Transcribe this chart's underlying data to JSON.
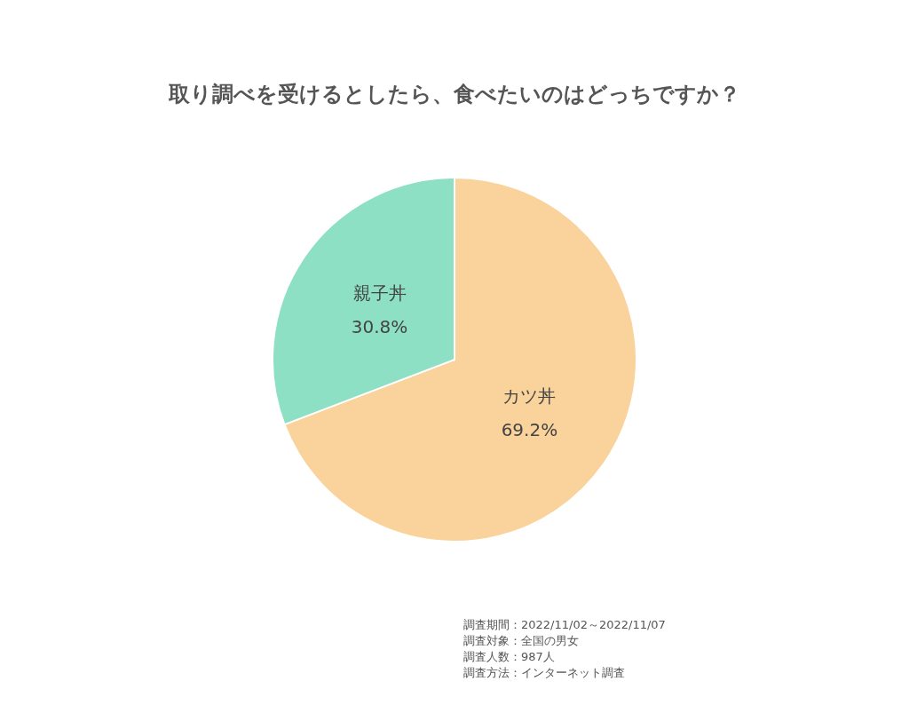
{
  "chart_data": {
    "type": "pie",
    "title": "取り調べを受けるとしたら、食べたいのはどっちですか？",
    "categories": [
      "カツ丼",
      "親子丼"
    ],
    "values": [
      69.2,
      30.8
    ],
    "value_labels": [
      "69.2%",
      "30.8%"
    ],
    "colors": [
      "#f9d39b",
      "#8de0c4"
    ],
    "legend": false,
    "annotations": [
      "調査期間：2022/11/02～2022/11/07",
      "調査対象：全国の男女",
      "調査人数：987人",
      "調査方法：インターネット調査"
    ]
  }
}
